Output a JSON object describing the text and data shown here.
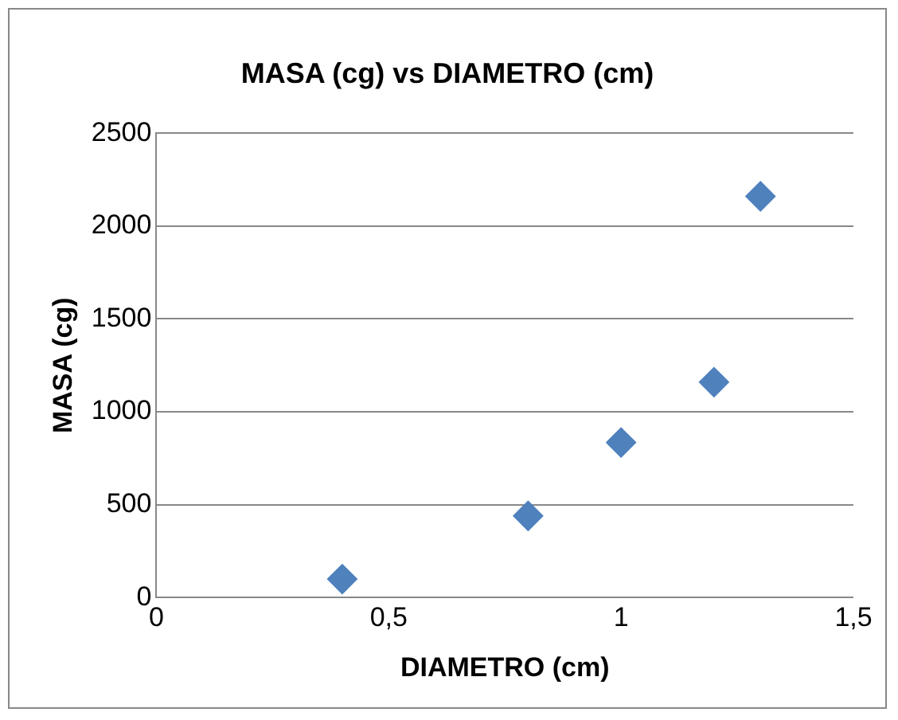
{
  "chart_data": {
    "type": "scatter",
    "title": "MASA (cg) vs DIAMETRO (cm)",
    "xlabel": "DIAMETRO (cm)",
    "ylabel": "MASA (cg)",
    "series": [
      {
        "color": "#4f81bd",
        "x": [
          0.4,
          0.8,
          1.0,
          1.2,
          1.3
        ],
        "values": [
          100,
          440,
          835,
          1160,
          2160
        ]
      }
    ],
    "xlim": [
      0,
      1.5
    ],
    "xticks": [
      0,
      {
        "value": 0.5,
        "label": "0,5"
      },
      1,
      {
        "value": 1.5,
        "label": "1,5"
      }
    ],
    "ylim": [
      0,
      2500
    ],
    "yticks": [
      0,
      500,
      1000,
      1500,
      2000,
      2500
    ],
    "grid": "y",
    "legend": false,
    "marker": "diamond"
  }
}
